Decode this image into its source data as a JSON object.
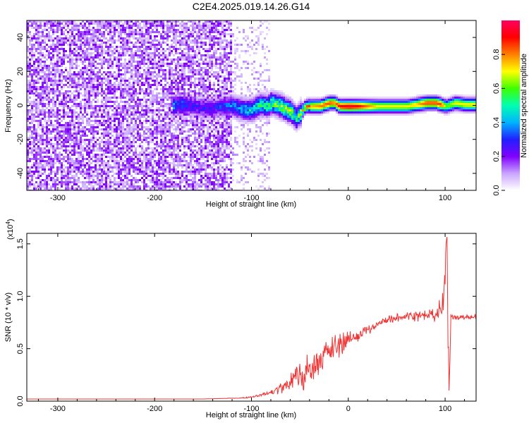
{
  "title": "C2E4.2025.019.14.26.G14",
  "chart_data": [
    {
      "type": "heatmap",
      "xlabel": "Height of straight line (km)",
      "ylabel": "Frequency (Hz)",
      "xlim": [
        -332,
        132
      ],
      "ylim": [
        -50,
        50
      ],
      "x_ticks": [
        -300,
        -200,
        -100,
        0,
        100
      ],
      "y_ticks": [
        -40,
        -20,
        0,
        20,
        40
      ],
      "colorbar": {
        "label": "Normalized spectral amplitude",
        "range": [
          0,
          1
        ],
        "ticks": [
          0.0,
          0.2,
          0.4,
          0.6,
          0.8
        ],
        "colormap": [
          "#ffffff",
          "#c9a4ff",
          "#8000ff",
          "#2020ff",
          "#00b4ff",
          "#00ffb0",
          "#40ff00",
          "#ffff00",
          "#ff8000",
          "#ff0000",
          "#ff0060"
        ]
      },
      "noise_region": {
        "x_range": [
          -332,
          -82
        ],
        "dense_until": -122,
        "amplitude": 0.15
      },
      "signal_ridge": {
        "x": [
          -182,
          -175,
          -160,
          -150,
          -140,
          -130,
          -120,
          -110,
          -100,
          -95,
          -90,
          -85,
          -80,
          -75,
          -70,
          -65,
          -60,
          -55,
          -50,
          -45,
          -40,
          -30,
          -20,
          -15,
          -10,
          0,
          10,
          20,
          30,
          40,
          50,
          60,
          70,
          80,
          90,
          95,
          100,
          110,
          120,
          132
        ],
        "frequency": [
          0,
          1,
          0,
          -1,
          -1,
          0,
          0,
          -2,
          -2,
          0,
          1,
          0,
          2,
          1,
          0,
          -2,
          -3,
          -7,
          -4,
          0,
          0,
          0,
          2,
          2,
          0,
          0,
          0,
          0,
          0,
          0,
          0,
          0,
          1,
          2,
          2,
          1,
          0,
          2,
          1,
          1
        ],
        "amplitude": [
          0.35,
          0.35,
          0.25,
          0.25,
          0.25,
          0.3,
          0.35,
          0.4,
          0.45,
          0.45,
          0.5,
          0.5,
          0.55,
          0.55,
          0.6,
          0.6,
          0.6,
          0.5,
          0.6,
          0.7,
          0.75,
          0.8,
          0.85,
          0.8,
          0.9,
          0.95,
          0.9,
          0.8,
          0.7,
          0.7,
          0.7,
          0.7,
          0.75,
          0.85,
          0.85,
          0.85,
          0.6,
          0.7,
          0.7,
          0.7
        ]
      }
    },
    {
      "type": "line",
      "xlabel": "Height of straight line (km)",
      "ylabel": "SNR (10 * v/v)",
      "multiplier": "(x10^4)",
      "y_scale": 10000,
      "xlim": [
        -332,
        132
      ],
      "ylim": [
        0,
        1.6
      ],
      "x_ticks": [
        -300,
        -200,
        -100,
        0,
        100
      ],
      "y_ticks": [
        0.0,
        0.5,
        1.0,
        1.5
      ],
      "series": [
        {
          "color": "#ee3333",
          "x": [
            -332,
            -300,
            -250,
            -200,
            -150,
            -110,
            -100,
            -90,
            -80,
            -70,
            -60,
            -55,
            -50,
            -45,
            -40,
            -35,
            -30,
            -25,
            -20,
            -15,
            -10,
            -5,
            0,
            5,
            10,
            15,
            20,
            25,
            30,
            35,
            40,
            45,
            50,
            55,
            60,
            65,
            70,
            75,
            80,
            85,
            90,
            95,
            98,
            100,
            102,
            103,
            104,
            106,
            110,
            120,
            132
          ],
          "y": [
            0.02,
            0.02,
            0.02,
            0.02,
            0.02,
            0.03,
            0.04,
            0.06,
            0.08,
            0.12,
            0.18,
            0.25,
            0.25,
            0.22,
            0.3,
            0.35,
            0.4,
            0.45,
            0.48,
            0.5,
            0.52,
            0.55,
            0.58,
            0.6,
            0.62,
            0.65,
            0.67,
            0.7,
            0.73,
            0.75,
            0.78,
            0.78,
            0.8,
            0.8,
            0.81,
            0.82,
            0.82,
            0.8,
            0.82,
            0.83,
            0.82,
            0.85,
            0.9,
            1.2,
            1.55,
            0.6,
            0.1,
            0.82,
            0.8,
            0.8,
            0.8
          ],
          "noise": [
            0.0,
            0.0,
            0.0,
            0.0,
            0.0,
            0.003,
            0.006,
            0.01,
            0.02,
            0.04,
            0.07,
            0.1,
            0.12,
            0.12,
            0.12,
            0.12,
            0.12,
            0.11,
            0.1,
            0.09,
            0.08,
            0.07,
            0.06,
            0.05,
            0.05,
            0.045,
            0.04,
            0.035,
            0.03,
            0.03,
            0.03,
            0.03,
            0.03,
            0.03,
            0.03,
            0.03,
            0.04,
            0.05,
            0.04,
            0.04,
            0.05,
            0.07,
            0.1,
            0.15,
            0.2,
            0.2,
            0.15,
            0.03,
            0.02,
            0.02,
            0.02
          ]
        }
      ]
    }
  ]
}
